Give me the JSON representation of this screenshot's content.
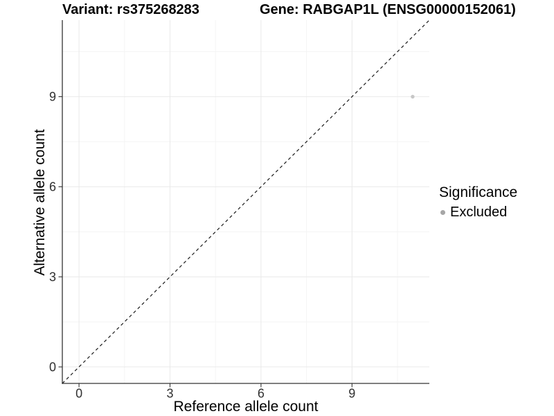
{
  "chart_data": {
    "type": "scatter",
    "titles": {
      "left": "Variant: rs375268283",
      "right": "Gene: RABGAP1L (ENSG00000152061)"
    },
    "xlabel": "Reference allele count",
    "ylabel": "Alternative allele count",
    "xlim": [
      -0.55,
      11.55
    ],
    "ylim": [
      -0.55,
      11.55
    ],
    "xticks": [
      0,
      3,
      6,
      9
    ],
    "yticks": [
      0,
      3,
      6,
      9
    ],
    "minor_gridlines": [
      1.5,
      4.5,
      7.5,
      10.5
    ],
    "grid": "major+minor",
    "identity_line": {
      "style": "dashed",
      "slope": 1,
      "intercept": 0
    },
    "series": [
      {
        "name": "Excluded",
        "color": "#c7c7c7",
        "points": [
          {
            "x": 11,
            "y": 9
          }
        ]
      }
    ],
    "legend": {
      "title": "Significance",
      "position": "right",
      "entries": [
        {
          "label": "Excluded",
          "key_color": "#a6a6a6"
        }
      ]
    },
    "colors": {
      "background": "#ffffff",
      "grid_major": "#e9e9e9",
      "grid_minor": "#f4f4f4",
      "axis_line": "#333333",
      "tick_mark": "#333333",
      "tick_label": "#303030",
      "identity_line": "#1a1a1a"
    }
  }
}
